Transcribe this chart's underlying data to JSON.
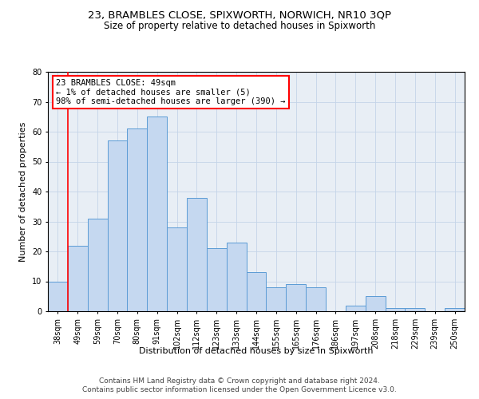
{
  "title": "23, BRAMBLES CLOSE, SPIXWORTH, NORWICH, NR10 3QP",
  "subtitle": "Size of property relative to detached houses in Spixworth",
  "xlabel": "Distribution of detached houses by size in Spixworth",
  "ylabel": "Number of detached properties",
  "categories": [
    "38sqm",
    "49sqm",
    "59sqm",
    "70sqm",
    "80sqm",
    "91sqm",
    "102sqm",
    "112sqm",
    "123sqm",
    "133sqm",
    "144sqm",
    "155sqm",
    "165sqm",
    "176sqm",
    "186sqm",
    "197sqm",
    "208sqm",
    "218sqm",
    "229sqm",
    "239sqm",
    "250sqm"
  ],
  "values": [
    10,
    22,
    31,
    57,
    61,
    65,
    28,
    38,
    21,
    23,
    13,
    8,
    9,
    8,
    0,
    2,
    5,
    1,
    1,
    0,
    1
  ],
  "bar_color": "#c5d8f0",
  "bar_edge_color": "#5b9bd5",
  "redline_index": 1,
  "annotation_text": "23 BRAMBLES CLOSE: 49sqm\n← 1% of detached houses are smaller (5)\n98% of semi-detached houses are larger (390) →",
  "annotation_box_color": "white",
  "annotation_box_edge_color": "red",
  "ylim": [
    0,
    80
  ],
  "yticks": [
    0,
    10,
    20,
    30,
    40,
    50,
    60,
    70,
    80
  ],
  "grid_color": "#c5d4e8",
  "background_color": "#e8eef5",
  "footer_line1": "Contains HM Land Registry data © Crown copyright and database right 2024.",
  "footer_line2": "Contains public sector information licensed under the Open Government Licence v3.0.",
  "title_fontsize": 9.5,
  "subtitle_fontsize": 8.5,
  "axis_label_fontsize": 8,
  "tick_fontsize": 7,
  "footer_fontsize": 6.5,
  "annotation_fontsize": 7.5
}
